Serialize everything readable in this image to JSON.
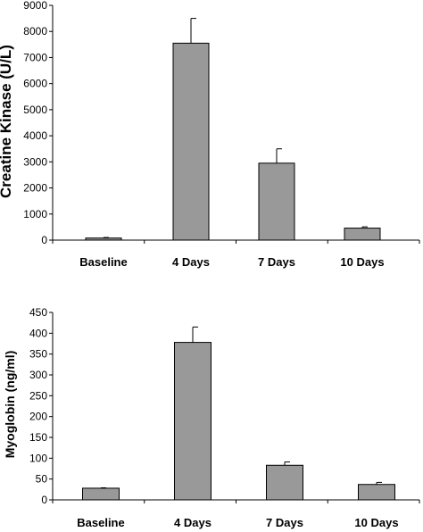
{
  "chart_data": [
    {
      "type": "bar",
      "title": "",
      "xlabel": "",
      "ylabel": "Creatine Kinase (U/L)",
      "categories": [
        "Baseline",
        "4 Days",
        "7 Days",
        "10 Days"
      ],
      "values": [
        80,
        7550,
        2950,
        460
      ],
      "errors": [
        20,
        950,
        550,
        50
      ],
      "ylim": [
        0,
        9000
      ],
      "yticks": [
        "0",
        "1000",
        "2000",
        "3000",
        "4000",
        "5000",
        "6000",
        "7000",
        "8000",
        "9000"
      ],
      "bar_color": "#999999",
      "grid": false,
      "legend": "none"
    },
    {
      "type": "bar",
      "title": "",
      "xlabel": "",
      "ylabel": "Myoglobin (ng/ml)",
      "categories": [
        "Baseline",
        "4 Days",
        "7 Days",
        "10 Days"
      ],
      "values": [
        28,
        378,
        83,
        37
      ],
      "errors": [
        1,
        37,
        8,
        5
      ],
      "ylim": [
        0,
        450
      ],
      "yticks": [
        "0",
        "50",
        "100",
        "150",
        "200",
        "250",
        "300",
        "350",
        "400",
        "450"
      ],
      "bar_color": "#999999",
      "grid": false,
      "legend": "none"
    }
  ]
}
